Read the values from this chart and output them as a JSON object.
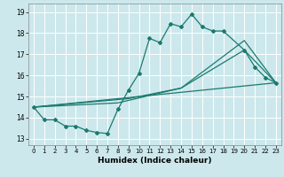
{
  "xlabel": "Humidex (Indice chaleur)",
  "bg_color": "#cce8ec",
  "grid_color": "#ffffff",
  "line_color": "#1a7a6e",
  "xlim": [
    -0.5,
    23.5
  ],
  "ylim": [
    12.7,
    19.4
  ],
  "yticks": [
    13,
    14,
    15,
    16,
    17,
    18,
    19
  ],
  "xticks": [
    0,
    1,
    2,
    3,
    4,
    5,
    6,
    7,
    8,
    9,
    10,
    11,
    12,
    13,
    14,
    15,
    16,
    17,
    18,
    19,
    20,
    21,
    22,
    23
  ],
  "line1_x": [
    0,
    1,
    2,
    3,
    4,
    5,
    6,
    7,
    8,
    9,
    10,
    11,
    12,
    13,
    14,
    15,
    16,
    17,
    18,
    20,
    21,
    22,
    23
  ],
  "line1_y": [
    14.5,
    13.9,
    13.9,
    13.6,
    13.6,
    13.4,
    13.3,
    13.25,
    14.4,
    15.3,
    16.1,
    17.75,
    17.55,
    18.45,
    18.3,
    18.9,
    18.3,
    18.1,
    18.1,
    17.2,
    16.4,
    15.9,
    15.65
  ],
  "line2_x": [
    0,
    23
  ],
  "line2_y": [
    14.5,
    15.65
  ],
  "line3_x": [
    0,
    9,
    14,
    20,
    23
  ],
  "line3_y": [
    14.5,
    14.9,
    15.4,
    17.2,
    15.65
  ],
  "line4_x": [
    0,
    8,
    14,
    20,
    23
  ],
  "line4_y": [
    14.5,
    14.7,
    15.4,
    17.65,
    15.65
  ]
}
